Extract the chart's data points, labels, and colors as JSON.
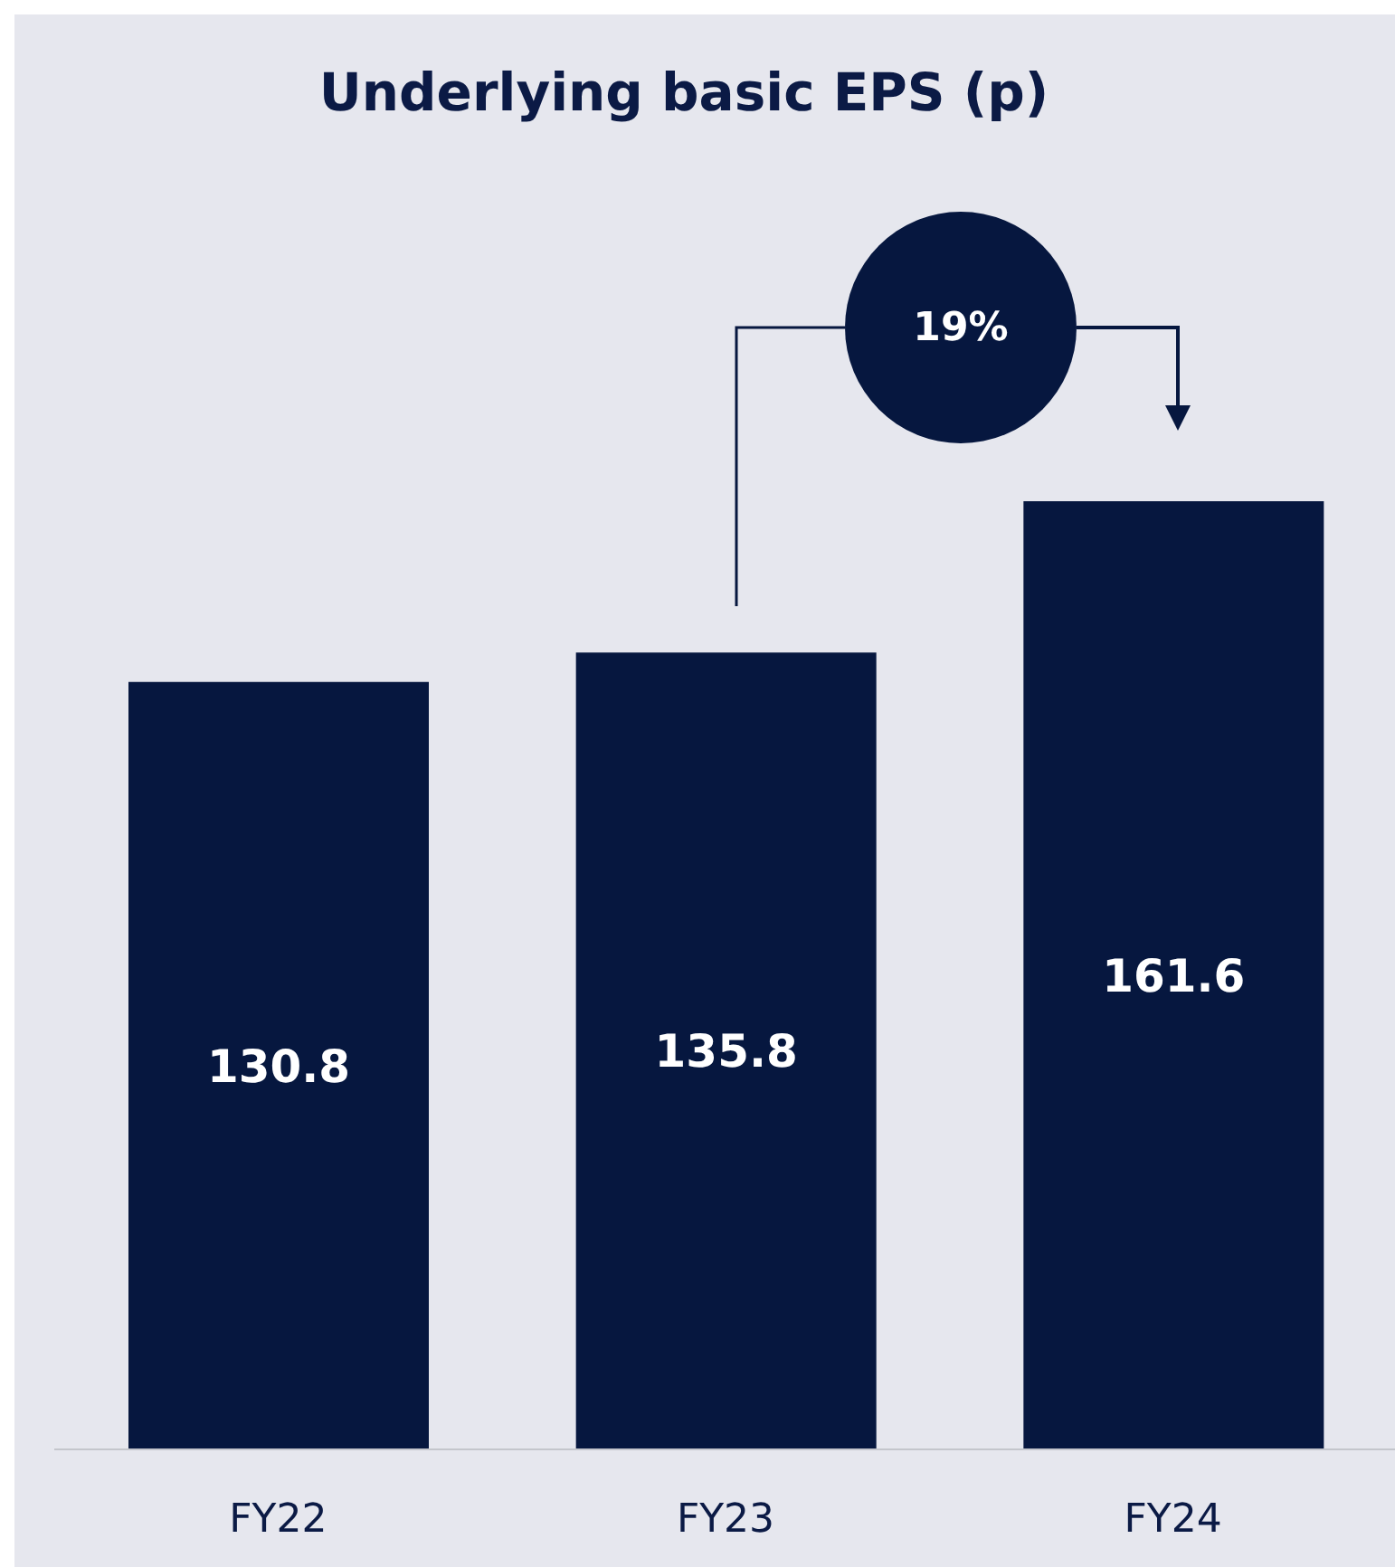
{
  "chart_data": {
    "type": "bar",
    "title": "Underlying basic EPS (p)",
    "categories": [
      "FY22",
      "FY23",
      "FY24"
    ],
    "values": [
      130.8,
      135.8,
      161.6
    ],
    "color": "#06173f",
    "data_labels": true,
    "annotations": [
      "19%"
    ]
  }
}
